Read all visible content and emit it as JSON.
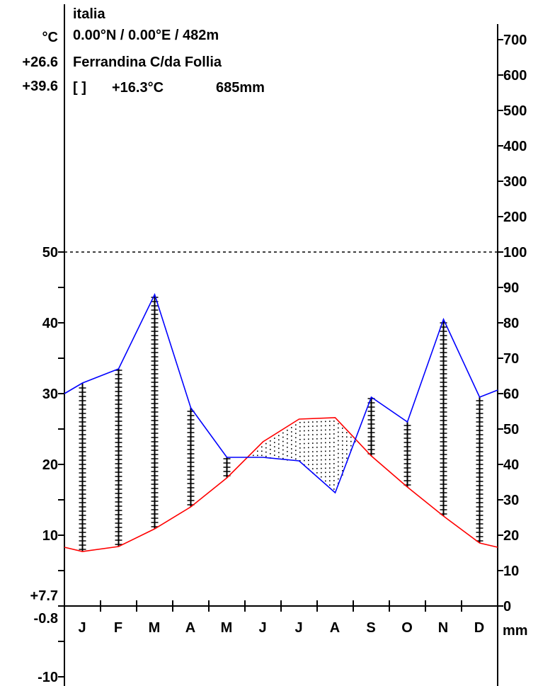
{
  "header": {
    "country": "italia",
    "coords": "0.00°N / 0.00°E / 482m",
    "station": "Ferrandina C/da Follia",
    "summary_bracket": "[  ]",
    "mean_temp": "+16.3°C",
    "annual_precip": "685mm",
    "unit_temp": "°C",
    "abs_max": "+26.6",
    "abs_max2": "+39.6"
  },
  "left_axis": {
    "ticks": [
      "50",
      "40",
      "30",
      "20",
      "10"
    ],
    "min_label": "+7.7",
    "zero_label": "-0.8",
    "neg_label": "-10"
  },
  "right_axis": {
    "ticks_upper": [
      "700",
      "600",
      "500",
      "400",
      "300",
      "200",
      "100"
    ],
    "ticks_lower": [
      "90",
      "80",
      "70",
      "60",
      "50",
      "40",
      "30",
      "20",
      "10",
      "0"
    ],
    "unit": "mm"
  },
  "chart_data": {
    "type": "line",
    "categories": [
      "J",
      "F",
      "M",
      "A",
      "M",
      "J",
      "J",
      "A",
      "S",
      "O",
      "N",
      "D"
    ],
    "temp_range": [
      -10,
      50
    ],
    "precip_range": [
      0,
      100
    ],
    "series": [
      {
        "values": [
          7.7,
          8.4,
          10.9,
          14.0,
          18.1,
          23.2,
          26.4,
          26.6,
          21.2,
          16.8,
          12.7,
          8.9
        ]
      },
      {
        "values": [
          63,
          67,
          88,
          56,
          42,
          42,
          41,
          32,
          59,
          52,
          81,
          59
        ]
      }
    ],
    "boundary": {
      "temp_start": 8.3,
      "temp_end": 8.3,
      "precip_start": 60,
      "precip_end": 61
    },
    "colors": {
      "temperature": "#ff0000",
      "precipitation": "#0000ff",
      "axis": "#000000"
    }
  }
}
